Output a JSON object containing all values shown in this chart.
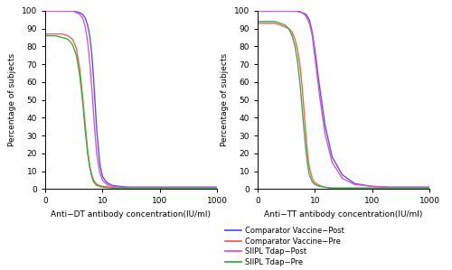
{
  "subplot1_xlabel": "Anti−DT antibody concentration(IU/ml)",
  "subplot2_xlabel": "Anti−TT antibody concentration(IU/ml)",
  "ylabel": "Percentage of subjects",
  "xlim": [
    1,
    1000
  ],
  "ylim": [
    0,
    100
  ],
  "yticks": [
    0,
    10,
    20,
    30,
    40,
    50,
    60,
    70,
    80,
    90,
    100
  ],
  "xticks": [
    1,
    10,
    100,
    1000
  ],
  "xticklabels": [
    "0",
    "10",
    "100",
    "1000"
  ],
  "legend_labels": [
    "Comparator Vaccine−Post",
    "Comparator Vaccine−Pre",
    "SIIPL Tdap−Post",
    "SIIPL Tdap−Pre"
  ],
  "colors": {
    "comp_post": "#5555ee",
    "comp_pre": "#ee6655",
    "siipl_post": "#dd55cc",
    "siipl_pre": "#44aa44"
  },
  "dt_comp_post_x": [
    1.0,
    1.2,
    1.5,
    2.0,
    2.5,
    3.0,
    3.5,
    4.0,
    4.5,
    5.0,
    5.5,
    6.0,
    6.5,
    7.0,
    7.5,
    8.0,
    9.0,
    10.0,
    12.0,
    15.0,
    20.0,
    30.0,
    50.0,
    100.0,
    300.0,
    1000.0
  ],
  "dt_comp_post_y": [
    100,
    100,
    100,
    100,
    100,
    100,
    99.5,
    99,
    98,
    96,
    92,
    86,
    76,
    62,
    46,
    32,
    14,
    7,
    3.5,
    2,
    1.5,
    1,
    1,
    1,
    1,
    1
  ],
  "dt_comp_pre_x": [
    1.0,
    1.2,
    1.5,
    2.0,
    2.5,
    3.0,
    3.5,
    4.0,
    4.5,
    5.0,
    5.5,
    6.0,
    6.5,
    7.0,
    8.0,
    10.0,
    15.0,
    20.0,
    50.0,
    100.0,
    300.0,
    1000.0
  ],
  "dt_comp_pre_y": [
    87,
    87,
    87,
    87,
    86,
    84,
    79,
    68,
    52,
    36,
    22,
    13,
    8,
    5,
    2.5,
    1.5,
    1,
    0.5,
    0.5,
    0.5,
    0.5,
    0.5
  ],
  "dt_siipl_post_x": [
    1.0,
    1.2,
    1.5,
    2.0,
    2.5,
    3.0,
    3.5,
    4.0,
    4.5,
    5.0,
    5.5,
    6.0,
    6.5,
    7.0,
    7.5,
    8.0,
    9.0,
    10.0,
    12.0,
    15.0,
    20.0,
    30.0,
    50.0,
    100.0,
    300.0,
    1000.0
  ],
  "dt_siipl_post_y": [
    100,
    100,
    100,
    100,
    100,
    100,
    99,
    98,
    96,
    91,
    83,
    71,
    57,
    42,
    29,
    19,
    9,
    5,
    2.5,
    1.5,
    1,
    1,
    1,
    1,
    1,
    1
  ],
  "dt_siipl_pre_x": [
    1.0,
    1.2,
    1.5,
    2.0,
    2.5,
    3.0,
    3.5,
    4.0,
    4.5,
    5.0,
    5.5,
    6.0,
    6.5,
    7.0,
    8.0,
    10.0,
    15.0,
    20.0,
    50.0,
    1000.0
  ],
  "dt_siipl_pre_y": [
    86,
    86,
    86,
    85,
    84,
    81,
    75,
    64,
    49,
    33,
    20,
    12,
    7,
    4,
    2,
    1,
    0.5,
    0.5,
    0.5,
    0.5
  ],
  "tt_comp_post_x": [
    1.0,
    1.2,
    1.5,
    2.0,
    2.5,
    3.0,
    3.5,
    4.0,
    4.5,
    5.0,
    6.0,
    7.0,
    8.0,
    9.0,
    10.0,
    12.0,
    15.0,
    20.0,
    30.0,
    50.0,
    100.0,
    200.0,
    500.0,
    1000.0
  ],
  "tt_comp_post_y": [
    100,
    100,
    100,
    100,
    100,
    100,
    100,
    100,
    100,
    100,
    99,
    98,
    95,
    88,
    78,
    58,
    36,
    18,
    8,
    3,
    1.5,
    1,
    1,
    1
  ],
  "tt_comp_pre_x": [
    1.0,
    1.5,
    2.0,
    2.5,
    3.0,
    3.5,
    4.0,
    4.5,
    5.0,
    5.5,
    6.0,
    6.5,
    7.0,
    7.5,
    8.0,
    9.0,
    10.0,
    12.0,
    15.0,
    20.0,
    30.0,
    50.0,
    100.0,
    1000.0
  ],
  "tt_comp_pre_y": [
    93,
    93,
    93,
    92,
    91,
    90,
    88,
    84,
    78,
    69,
    57,
    43,
    30,
    19,
    12,
    6,
    3.5,
    2,
    1,
    0.5,
    0.5,
    0.5,
    0.5,
    0.5
  ],
  "tt_siipl_post_x": [
    1.0,
    1.2,
    1.5,
    2.0,
    2.5,
    3.0,
    3.5,
    4.0,
    4.5,
    5.0,
    6.0,
    7.0,
    8.0,
    9.0,
    10.0,
    12.0,
    15.0,
    20.0,
    30.0,
    50.0,
    100.0,
    200.0,
    500.0,
    1000.0
  ],
  "tt_siipl_post_y": [
    100,
    100,
    100,
    100,
    100,
    100,
    100,
    100,
    100,
    99.5,
    99,
    97,
    93,
    86,
    74,
    53,
    31,
    15,
    6,
    2.5,
    1.5,
    1,
    1,
    1
  ],
  "tt_siipl_pre_x": [
    1.0,
    1.5,
    2.0,
    2.5,
    3.0,
    3.5,
    4.0,
    4.5,
    5.0,
    5.5,
    6.0,
    6.5,
    7.0,
    7.5,
    8.0,
    9.0,
    10.0,
    12.0,
    15.0,
    20.0,
    30.0,
    50.0,
    100.0,
    1000.0
  ],
  "tt_siipl_pre_y": [
    94,
    94,
    94,
    93,
    92,
    90,
    86,
    80,
    71,
    59,
    45,
    32,
    21,
    13,
    8,
    4,
    2.5,
    1.5,
    1,
    0.5,
    0.5,
    0.5,
    0.5,
    0.5
  ]
}
